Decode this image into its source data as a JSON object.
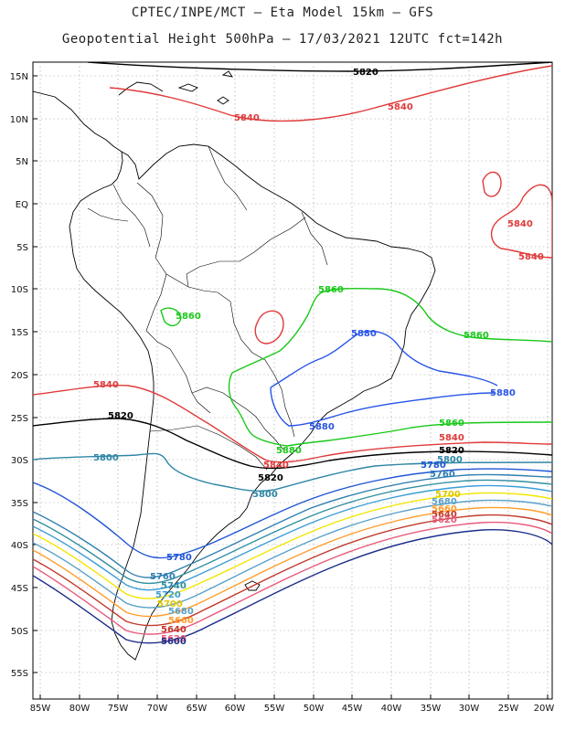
{
  "header": {
    "line1": "CPTEC/INPE/MCT –  Eta Model 15km – GFS",
    "line2": "Geopotential Height 500hPa – 17/03/2021 12UTC fct=142h"
  },
  "axes": {
    "lat_ticks": [
      "15N",
      "10N",
      "5N",
      "EQ",
      "5S",
      "10S",
      "15S",
      "20S",
      "25S",
      "30S",
      "35S",
      "40S",
      "45S",
      "50S",
      "55S"
    ],
    "lon_ticks": [
      "85W",
      "80W",
      "75W",
      "70W",
      "65W",
      "60W",
      "55W",
      "50W",
      "45W",
      "40W",
      "35W",
      "30W",
      "25W",
      "20W"
    ]
  },
  "contours": {
    "colors": {
      "5500": "#1a2d8a",
      "5560": "#c0392b",
      "5580": "#ff7f2a",
      "5600": "#6a6a00",
      "5640": "#3a78d0",
      "5700": "#f2e600",
      "5720": "#3a9dd6",
      "5740": "#2f8fa0",
      "5760": "#2f7fb0",
      "5780": "#1f55d6",
      "5800": "#2f86a6",
      "5820": "#000000",
      "5840": "#e03a3a",
      "5860": "#19c819",
      "5880": "#2855e6"
    },
    "labels": {
      "n5820": "5820",
      "n5840": "5840",
      "n5840b": "5840",
      "n5840c": "5840",
      "ecb": "5840",
      "cs": "5880",
      "g5860a": "5860",
      "g5860b": "5860",
      "g5860c": "5860",
      "g5860d": "5860",
      "b5880a": "5880",
      "b5880b": "5880",
      "b5880c": "5880",
      "r5840w": "5840",
      "r5840e": "5840",
      "k5820w": "5820",
      "k5820e": "5820",
      "k5820s": "5820",
      "r5840s": "5840",
      "c5800w": "5800",
      "c5800s": "5800",
      "c5800e": "5800",
      "v5780e": "5780",
      "v5760e": "5760",
      "y5700e": "5700",
      "o5680e": "5680",
      "s5680e": "5660",
      "c5640e": "5640",
      "d5620e": "5620",
      "b5780": "5780",
      "b5760": "5760",
      "b5740": "5740",
      "b5720": "5720",
      "y5700": "5700",
      "o5680": "5680",
      "o5660": "5660",
      "r5640": "5640",
      "r5620": "5620",
      "n5600": "5600"
    }
  }
}
